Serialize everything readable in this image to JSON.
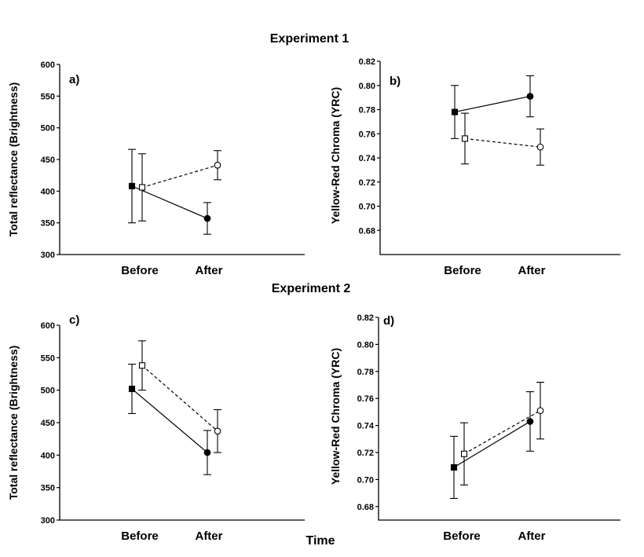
{
  "figure": {
    "experiment1_title": "Experiment 1",
    "experiment2_title": "Experiment 2",
    "xlabel": "Time"
  },
  "chart_data": [
    {
      "id": "a",
      "type": "line",
      "panel_label": "a)",
      "ylabel": "Total reflectance (Brightness)",
      "categories": [
        "Before",
        "After"
      ],
      "ylim": [
        300,
        600
      ],
      "yticks": [
        "300",
        "350",
        "400",
        "450",
        "500",
        "550",
        "600"
      ],
      "grid": false,
      "series": [
        {
          "marker": "filled",
          "line": "solid",
          "values": [
            408,
            357
          ],
          "err": [
            58,
            25
          ]
        },
        {
          "marker": "open",
          "line": "dashed",
          "values": [
            406,
            441
          ],
          "err": [
            53,
            23
          ]
        }
      ]
    },
    {
      "id": "b",
      "type": "line",
      "panel_label": "b)",
      "ylabel": "Yellow-Red Chroma (YRC)",
      "categories": [
        "Before",
        "After"
      ],
      "ylim": [
        0.66,
        0.82
      ],
      "yticks": [
        "0.68",
        "0.70",
        "0.72",
        "0.74",
        "0.76",
        "0.78",
        "0.80",
        "0.82"
      ],
      "grid": false,
      "series": [
        {
          "marker": "filled",
          "line": "solid",
          "values": [
            0.778,
            0.791
          ],
          "err": [
            0.022,
            0.017
          ]
        },
        {
          "marker": "open",
          "line": "dashed",
          "values": [
            0.756,
            0.749
          ],
          "err": [
            0.021,
            0.015
          ]
        }
      ]
    },
    {
      "id": "c",
      "type": "line",
      "panel_label": "c)",
      "ylabel": "Total reflectance (Brightness)",
      "categories": [
        "Before",
        "After"
      ],
      "ylim": [
        300,
        600
      ],
      "yticks": [
        "300",
        "350",
        "400",
        "450",
        "500",
        "550",
        "600"
      ],
      "grid": false,
      "series": [
        {
          "marker": "filled",
          "line": "solid",
          "values": [
            502,
            404
          ],
          "err": [
            38,
            34
          ]
        },
        {
          "marker": "open",
          "line": "dashed",
          "values": [
            538,
            437
          ],
          "err": [
            38,
            33
          ]
        }
      ]
    },
    {
      "id": "d",
      "type": "line",
      "panel_label": "d)",
      "ylabel": "Yellow-Red Chroma (YRC)",
      "categories": [
        "Before",
        "After"
      ],
      "ylim": [
        0.67,
        0.82
      ],
      "yticks": [
        "0.68",
        "0.70",
        "0.72",
        "0.74",
        "0.76",
        "0.78",
        "0.80",
        "0.82"
      ],
      "grid": false,
      "series": [
        {
          "marker": "filled",
          "line": "solid",
          "values": [
            0.709,
            0.743
          ],
          "err": [
            0.023,
            0.022
          ]
        },
        {
          "marker": "open",
          "line": "dashed",
          "values": [
            0.719,
            0.751
          ],
          "err": [
            0.023,
            0.021
          ]
        }
      ]
    }
  ]
}
